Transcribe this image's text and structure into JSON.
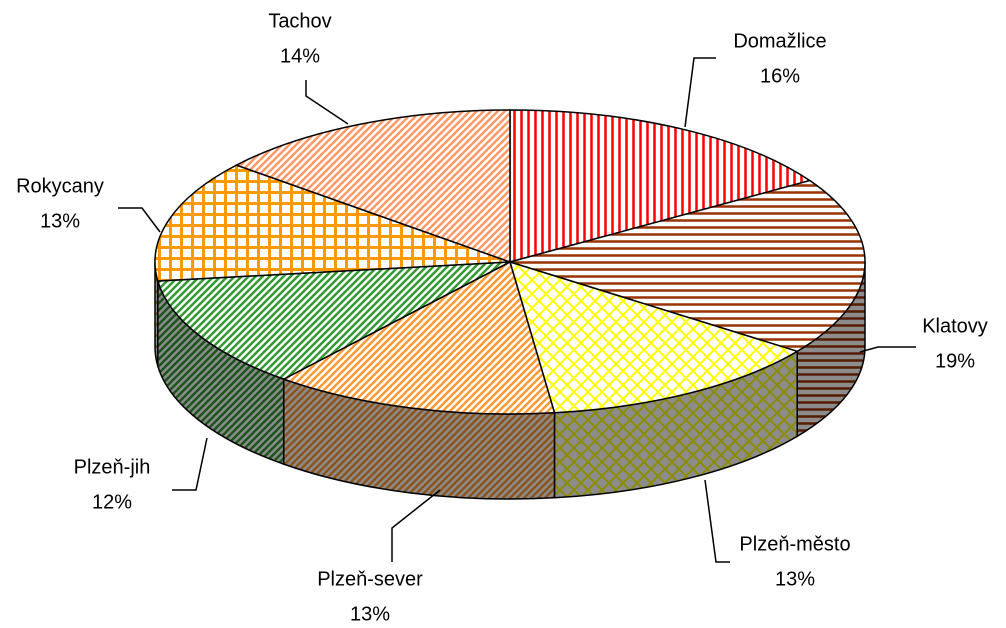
{
  "chart_data": {
    "type": "pie3d",
    "categories": [
      "Domažlice",
      "Klatovy",
      "Plzeň-město",
      "Plzeň-sever",
      "Plzeň-jih",
      "Rokycany",
      "Tachov"
    ],
    "values": [
      16,
      19,
      13,
      13,
      12,
      13,
      14
    ],
    "value_labels": [
      "16%",
      "19%",
      "13%",
      "13%",
      "12%",
      "13%",
      "14%"
    ],
    "colors": [
      "#ff0000",
      "#993300",
      "#ffff00",
      "#ff9933",
      "#339933",
      "#ff9900",
      "#ff9966"
    ]
  }
}
